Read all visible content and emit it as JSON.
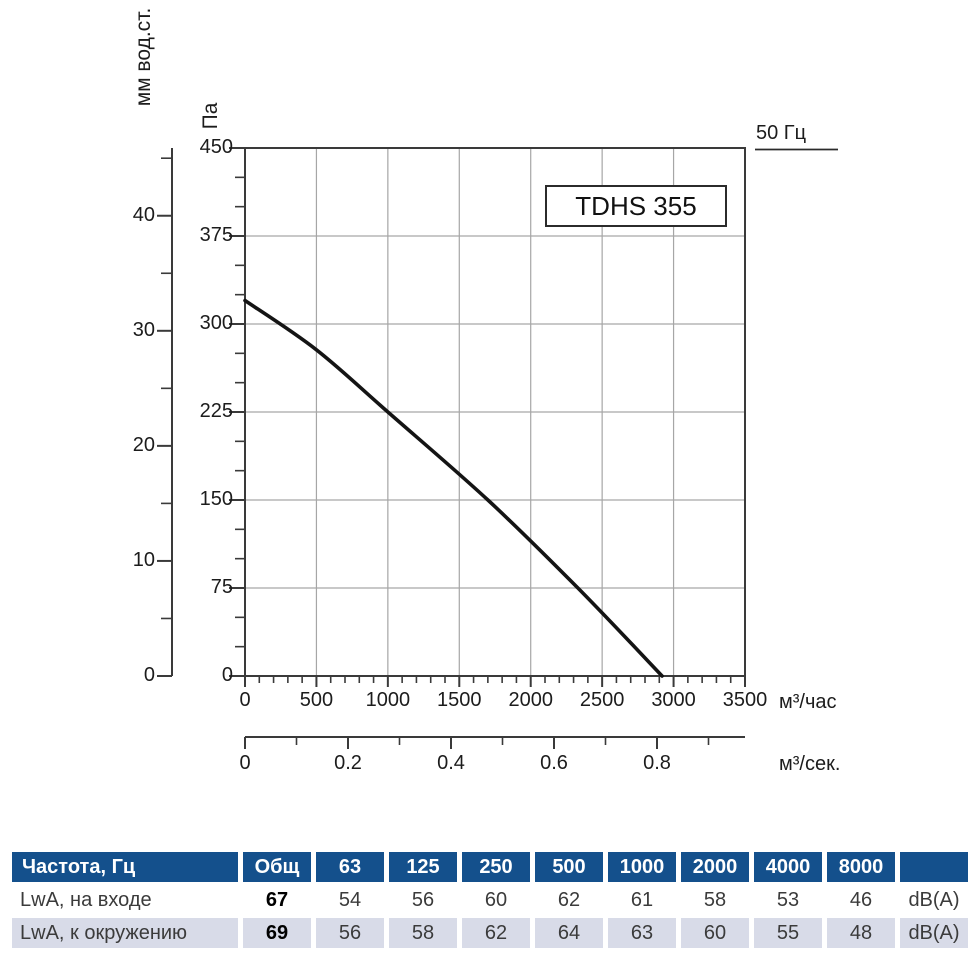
{
  "chart_data": {
    "type": "line",
    "title": "TDHS 355",
    "xlabel": "м³/час",
    "ylabel": "Па",
    "xlim": [
      0,
      3500
    ],
    "ylim": [
      0,
      450
    ],
    "x_ticks": [
      0,
      500,
      1000,
      1500,
      2000,
      2500,
      3000,
      3500
    ],
    "x_minor_step": 100,
    "y_ticks": [
      0,
      75,
      150,
      225,
      300,
      375,
      450
    ],
    "y_minor_step": 25,
    "grid": true,
    "series": [
      {
        "name": "50 Гц",
        "x": [
          0,
          500,
          1000,
          1700,
          2330,
          2920
        ],
        "y": [
          320,
          278,
          225,
          150,
          75,
          0
        ]
      }
    ],
    "secondary_x": {
      "unit": "м³/сек.",
      "ticks": [
        0,
        0.2,
        0.4,
        0.6,
        0.8
      ],
      "minor_step": 0.1
    },
    "secondary_y": {
      "unit": "мм вод.ст.",
      "ticks": [
        0,
        10,
        20,
        30,
        40
      ],
      "minor_step": 5
    }
  },
  "table": {
    "header": [
      "Частота, Гц",
      "Общ",
      "63",
      "125",
      "250",
      "500",
      "1000",
      "2000",
      "4000",
      "8000",
      ""
    ],
    "rows": [
      {
        "label": "LwA, на входе",
        "values": [
          "67",
          "54",
          "56",
          "60",
          "62",
          "61",
          "58",
          "53",
          "46"
        ],
        "unit": "dB(A)"
      },
      {
        "label": "LwA, к окружению",
        "values": [
          "69",
          "56",
          "58",
          "62",
          "64",
          "63",
          "60",
          "55",
          "48"
        ],
        "unit": "dB(A)"
      }
    ]
  },
  "colors": {
    "curve": "#141414",
    "grid": "#a6a6a6",
    "axis": "#3a3a3a",
    "table_header_bg": "#14508c",
    "table_alt_row_bg": "#d8dbe8"
  }
}
